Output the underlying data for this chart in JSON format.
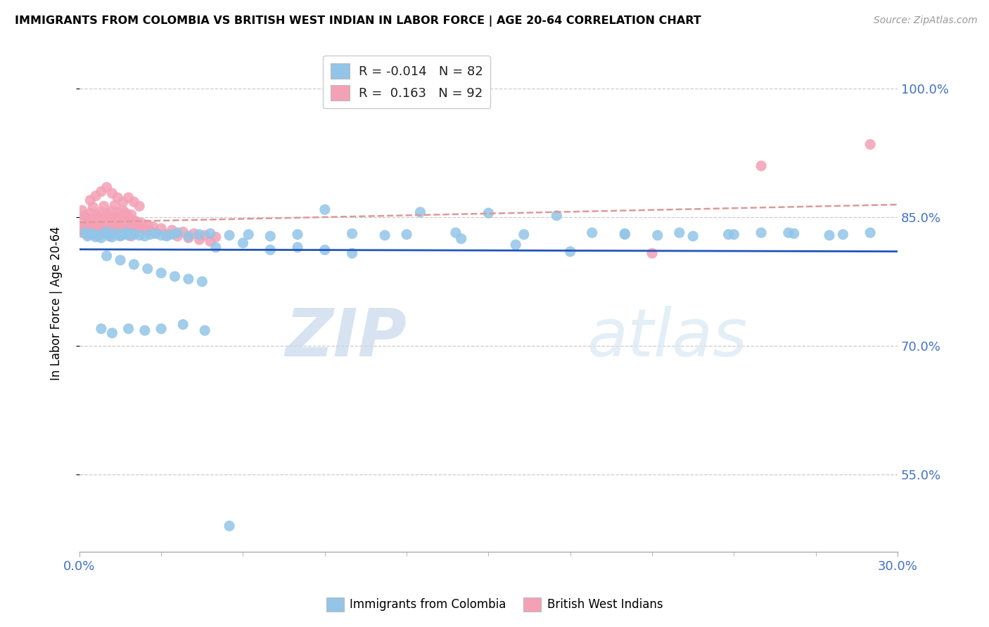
{
  "title": "IMMIGRANTS FROM COLOMBIA VS BRITISH WEST INDIAN IN LABOR FORCE | AGE 20-64 CORRELATION CHART",
  "source": "Source: ZipAtlas.com",
  "ylabel": "In Labor Force | Age 20-64",
  "xlim": [
    0.0,
    0.3
  ],
  "ylim": [
    0.46,
    1.04
  ],
  "yticks": [
    0.55,
    0.7,
    0.85,
    1.0
  ],
  "ytick_labels": [
    "55.0%",
    "70.0%",
    "85.0%",
    "100.0%"
  ],
  "xtick_labels": [
    "0.0%",
    "30.0%"
  ],
  "colombia_R": -0.014,
  "colombia_N": 82,
  "bwi_R": 0.163,
  "bwi_N": 92,
  "colombia_color": "#92C5E8",
  "bwi_color": "#F4A0B5",
  "colombia_line_color": "#2255BB",
  "bwi_line_color": "#DD9999",
  "watermark_zip": "ZIP",
  "watermark_atlas": "atlas",
  "legend_label_colombia": "Immigrants from Colombia",
  "legend_label_bwi": "British West Indians",
  "colombia_x": [
    0.002,
    0.003,
    0.004,
    0.005,
    0.006,
    0.007,
    0.008,
    0.009,
    0.01,
    0.011,
    0.012,
    0.013,
    0.014,
    0.015,
    0.016,
    0.017,
    0.018,
    0.019,
    0.02,
    0.022,
    0.024,
    0.026,
    0.028,
    0.03,
    0.032,
    0.034,
    0.036,
    0.04,
    0.044,
    0.048,
    0.055,
    0.062,
    0.07,
    0.08,
    0.09,
    0.1,
    0.112,
    0.125,
    0.138,
    0.15,
    0.163,
    0.175,
    0.188,
    0.2,
    0.212,
    0.225,
    0.238,
    0.25,
    0.262,
    0.275,
    0.01,
    0.015,
    0.02,
    0.025,
    0.03,
    0.035,
    0.04,
    0.045,
    0.05,
    0.06,
    0.07,
    0.08,
    0.09,
    0.1,
    0.12,
    0.14,
    0.16,
    0.18,
    0.2,
    0.22,
    0.24,
    0.26,
    0.28,
    0.29,
    0.008,
    0.012,
    0.018,
    0.024,
    0.03,
    0.038,
    0.046,
    0.055
  ],
  "colombia_y": [
    0.832,
    0.828,
    0.831,
    0.83,
    0.827,
    0.829,
    0.826,
    0.831,
    0.833,
    0.829,
    0.827,
    0.831,
    0.83,
    0.828,
    0.83,
    0.832,
    0.829,
    0.831,
    0.83,
    0.829,
    0.828,
    0.83,
    0.831,
    0.829,
    0.828,
    0.83,
    0.832,
    0.828,
    0.83,
    0.831,
    0.829,
    0.83,
    0.828,
    0.83,
    0.859,
    0.831,
    0.829,
    0.856,
    0.832,
    0.855,
    0.83,
    0.852,
    0.832,
    0.831,
    0.829,
    0.828,
    0.83,
    0.832,
    0.831,
    0.829,
    0.805,
    0.8,
    0.795,
    0.79,
    0.785,
    0.781,
    0.778,
    0.775,
    0.815,
    0.82,
    0.812,
    0.815,
    0.812,
    0.808,
    0.83,
    0.825,
    0.818,
    0.81,
    0.83,
    0.832,
    0.83,
    0.832,
    0.83,
    0.832,
    0.72,
    0.715,
    0.72,
    0.718,
    0.72,
    0.725,
    0.718,
    0.49
  ],
  "bwi_x": [
    0.001,
    0.002,
    0.003,
    0.004,
    0.005,
    0.006,
    0.007,
    0.008,
    0.009,
    0.01,
    0.011,
    0.012,
    0.013,
    0.014,
    0.015,
    0.016,
    0.017,
    0.018,
    0.019,
    0.02,
    0.001,
    0.002,
    0.003,
    0.004,
    0.005,
    0.006,
    0.007,
    0.008,
    0.009,
    0.01,
    0.011,
    0.012,
    0.013,
    0.014,
    0.015,
    0.016,
    0.017,
    0.018,
    0.019,
    0.02,
    0.001,
    0.002,
    0.003,
    0.004,
    0.005,
    0.006,
    0.007,
    0.008,
    0.009,
    0.01,
    0.011,
    0.012,
    0.013,
    0.014,
    0.015,
    0.016,
    0.017,
    0.018,
    0.019,
    0.02,
    0.021,
    0.022,
    0.023,
    0.024,
    0.025,
    0.026,
    0.027,
    0.028,
    0.03,
    0.032,
    0.034,
    0.036,
    0.038,
    0.04,
    0.042,
    0.044,
    0.046,
    0.048,
    0.05,
    0.004,
    0.006,
    0.008,
    0.01,
    0.012,
    0.014,
    0.016,
    0.018,
    0.02,
    0.022,
    0.29,
    0.25,
    0.21
  ],
  "bwi_y": [
    0.832,
    0.838,
    0.835,
    0.83,
    0.84,
    0.832,
    0.828,
    0.835,
    0.84,
    0.832,
    0.828,
    0.836,
    0.841,
    0.832,
    0.829,
    0.838,
    0.842,
    0.833,
    0.828,
    0.837,
    0.845,
    0.836,
    0.83,
    0.842,
    0.847,
    0.837,
    0.831,
    0.843,
    0.848,
    0.838,
    0.832,
    0.844,
    0.849,
    0.839,
    0.833,
    0.845,
    0.85,
    0.84,
    0.834,
    0.846,
    0.858,
    0.852,
    0.848,
    0.855,
    0.862,
    0.854,
    0.849,
    0.856,
    0.863,
    0.855,
    0.85,
    0.857,
    0.864,
    0.856,
    0.851,
    0.858,
    0.855,
    0.849,
    0.853,
    0.84,
    0.845,
    0.838,
    0.843,
    0.836,
    0.841,
    0.834,
    0.839,
    0.832,
    0.837,
    0.83,
    0.835,
    0.828,
    0.833,
    0.826,
    0.831,
    0.824,
    0.829,
    0.822,
    0.827,
    0.87,
    0.875,
    0.88,
    0.885,
    0.878,
    0.873,
    0.868,
    0.873,
    0.868,
    0.863,
    0.935,
    0.91,
    0.808
  ]
}
